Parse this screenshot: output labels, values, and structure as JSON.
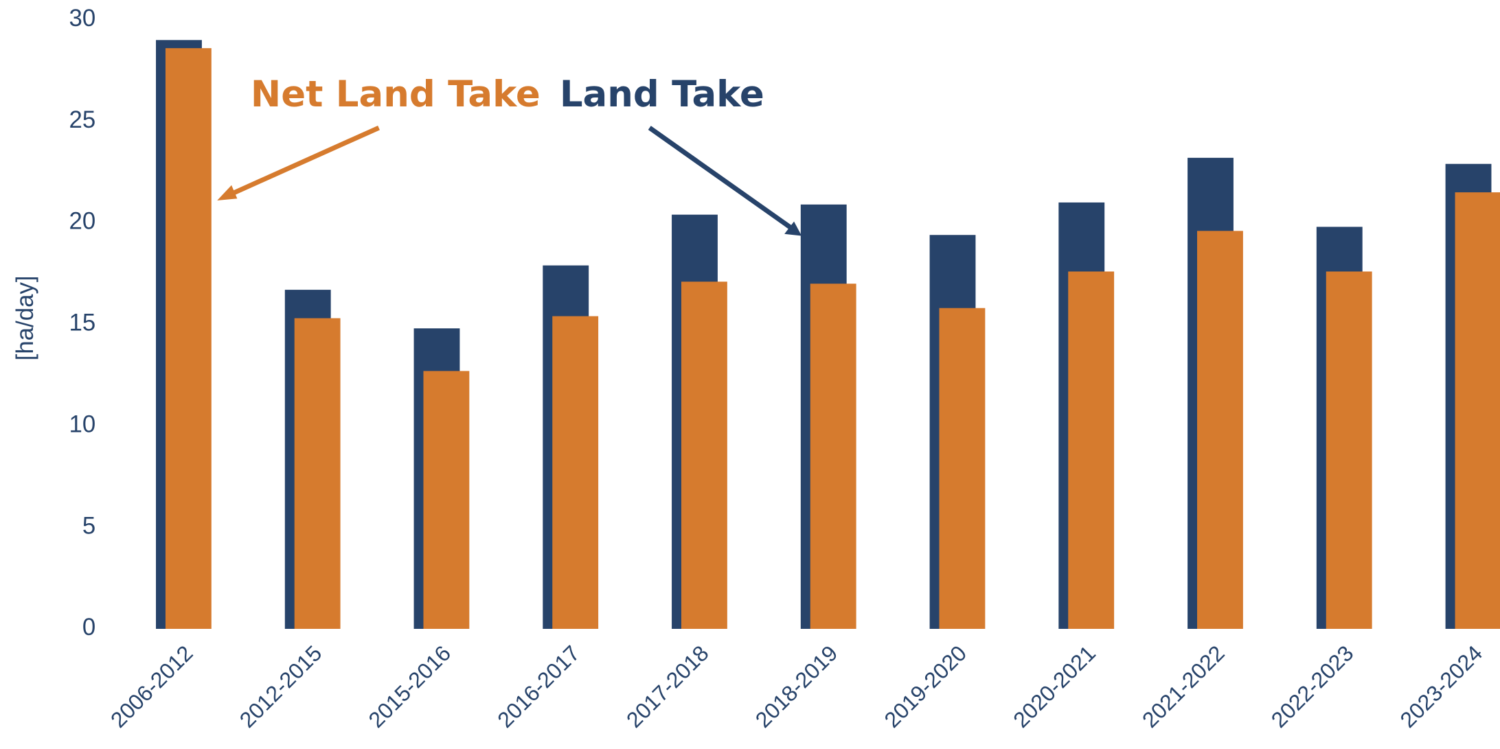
{
  "chart_data": {
    "type": "bar",
    "y_label": "[ha/day]",
    "categories": [
      "2006-2012",
      "2012-2015",
      "2015-2016",
      "2016-2017",
      "2017-2018",
      "2018-2019",
      "2019-2020",
      "2020-2021",
      "2021-2022",
      "2022-2023",
      "2023-2024"
    ],
    "series": [
      {
        "name": "Land Take",
        "color": "#27436A",
        "values": [
          29.0,
          16.7,
          14.8,
          17.9,
          20.4,
          20.9,
          19.4,
          21.0,
          23.2,
          19.8,
          22.9
        ]
      },
      {
        "name": "Net Land Take",
        "color": "#D67B2E",
        "values": [
          28.6,
          15.3,
          12.7,
          15.4,
          17.1,
          17.0,
          15.8,
          17.6,
          19.6,
          17.6,
          21.5
        ]
      }
    ],
    "ylim": [
      0,
      30
    ],
    "yticks": [
      0,
      5,
      10,
      15,
      20,
      25,
      30
    ],
    "grid": false
  }
}
